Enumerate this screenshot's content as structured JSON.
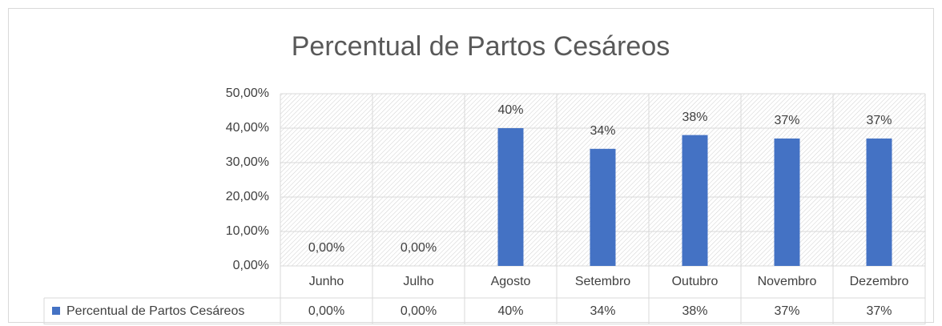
{
  "chart_data": {
    "type": "bar",
    "title": "Percentual de Partos Cesáreos",
    "categories": [
      "Junho",
      "Julho",
      "Agosto",
      "Setembro",
      "Outubro",
      "Novembro",
      "Dezembro"
    ],
    "series": [
      {
        "name": "Percentual de Partos Cesáreos",
        "color": "#4472c4",
        "values": [
          0,
          0,
          40,
          34,
          38,
          37,
          37
        ],
        "value_labels": [
          "0,00%",
          "0,00%",
          "40%",
          "34%",
          "38%",
          "37%",
          "37%"
        ]
      }
    ],
    "ylim": [
      0,
      50
    ],
    "yticks": [
      {
        "value": 0,
        "label": "0,00%"
      },
      {
        "value": 10,
        "label": "10,00%"
      },
      {
        "value": 20,
        "label": "20,00%"
      },
      {
        "value": 30,
        "label": "30,00%"
      },
      {
        "value": 40,
        "label": "40,00%"
      },
      {
        "value": 50,
        "label": "50,00%"
      }
    ],
    "grid": true,
    "data_table": true
  }
}
